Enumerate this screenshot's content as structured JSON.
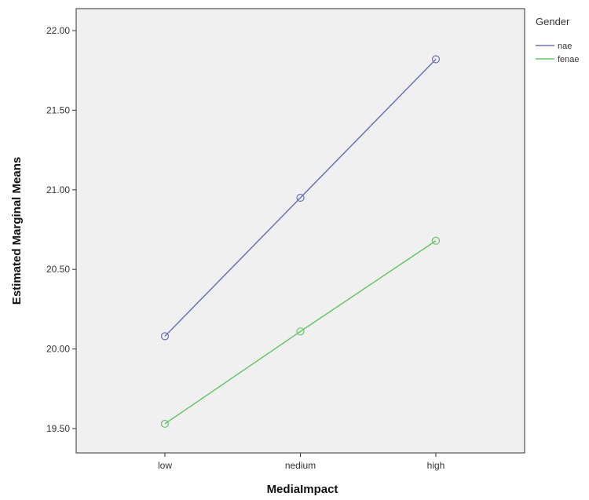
{
  "chart_data": {
    "type": "line",
    "xlabel": "MediaImpact",
    "ylabel": "Estimated Marginal Means",
    "categories": [
      "low",
      "nedium",
      "high"
    ],
    "ylim": [
      19.5,
      22.0
    ],
    "yticks": [
      "19.50",
      "20.00",
      "20.50",
      "21.00",
      "21.50",
      "22.00"
    ],
    "legend": {
      "title": "Gender",
      "position": "right"
    },
    "grid": false,
    "plot_background": "#f0f0f0",
    "series": [
      {
        "name": "nae",
        "color": "#6b72b8",
        "marker": "circle",
        "values": [
          20.08,
          20.95,
          21.82
        ]
      },
      {
        "name": "fenae",
        "color": "#6ac46a",
        "marker": "circle",
        "values": [
          19.53,
          20.11,
          20.68
        ]
      }
    ]
  }
}
